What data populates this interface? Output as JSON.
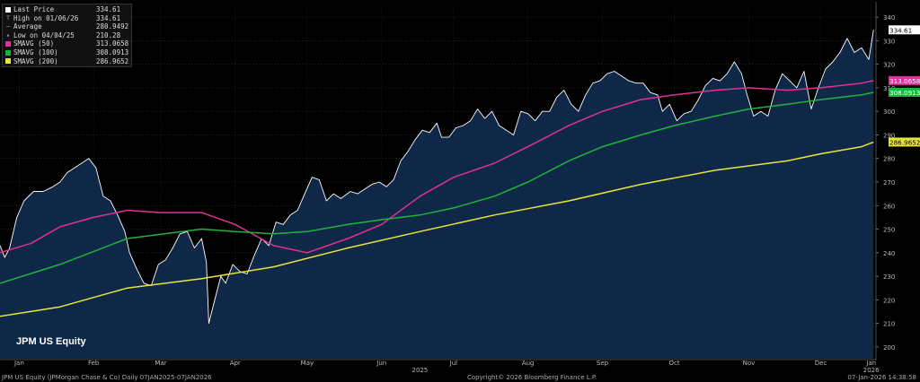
{
  "legend": [
    {
      "label": "Last Price",
      "value": "334.61",
      "color": "#ffffff",
      "glyph": "square"
    },
    {
      "label": "High on 01/06/26",
      "value": "334.61",
      "color": "#aaaaaa",
      "glyph": "T"
    },
    {
      "label": "Average",
      "value": "280.9492",
      "color": "#aaaaaa",
      "glyph": "dash"
    },
    {
      "label": "Low on 04/04/25",
      "value": "210.28",
      "color": "#aaaaaa",
      "glyph": "tri"
    },
    {
      "label": "SMAVG (50)",
      "value": "313.0658",
      "color": "#e0309a",
      "glyph": "square"
    },
    {
      "label": "SMAVG (100)",
      "value": "308.0913",
      "color": "#1eb43c",
      "glyph": "square"
    },
    {
      "label": "SMAVG (200)",
      "value": "286.9652",
      "color": "#e8e43a",
      "glyph": "square"
    }
  ],
  "ticker": "JPM US Equity",
  "footer": {
    "left": "JPM US Equity (JPMorgan Chase & Co)  Daily 07JAN2025-07JAN2026",
    "center": "Copyright© 2026 Bloomberg Finance L.P.",
    "right": "07-Jan-2026 14:38:58"
  },
  "chart_data": {
    "type": "line",
    "title": "",
    "ylim": [
      195,
      345
    ],
    "y_ticks": [
      200,
      210,
      220,
      230,
      240,
      250,
      260,
      270,
      280,
      290,
      300,
      310,
      320,
      330,
      340
    ],
    "x_range": [
      "2025-01-07",
      "2026-01-07"
    ],
    "x_ticks": [
      {
        "label": "Jan",
        "date": "2025-01-15"
      },
      {
        "label": "Feb",
        "date": "2025-02-15"
      },
      {
        "label": "Mar",
        "date": "2025-03-15"
      },
      {
        "label": "Apr",
        "date": "2025-04-15"
      },
      {
        "label": "May",
        "date": "2025-05-15"
      },
      {
        "label": "Jun",
        "date": "2025-06-15"
      },
      {
        "label": "Jul",
        "date": "2025-07-15"
      },
      {
        "label": "Aug",
        "date": "2025-08-15"
      },
      {
        "label": "Sep",
        "date": "2025-09-15"
      },
      {
        "label": "Oct",
        "date": "2025-10-15"
      },
      {
        "label": "Nov",
        "date": "2025-11-15"
      },
      {
        "label": "Dec",
        "date": "2025-12-15"
      },
      {
        "label": "Jan",
        "date": "2026-01-05"
      }
    ],
    "year_labels": [
      {
        "label": "2025",
        "date": "2025-07-01"
      },
      {
        "label": "2026",
        "date": "2026-01-05"
      }
    ],
    "last_value_labels": [
      {
        "value": "334.61",
        "y": 334.61,
        "bg": "#ffffff",
        "fg": "#000000"
      },
      {
        "value": "313.0658",
        "y": 313.07,
        "bg": "#e0309a",
        "fg": "#ffffff"
      },
      {
        "value": "308.0913",
        "y": 308.09,
        "bg": "#1eb43c",
        "fg": "#ffffff"
      },
      {
        "value": "286.9652",
        "y": 286.97,
        "bg": "#e8e43a",
        "fg": "#000000"
      }
    ],
    "series": [
      {
        "name": "Last Price",
        "color": "#ffffff",
        "fill": "#0f2847",
        "points": [
          [
            "2025-01-07",
            243
          ],
          [
            "2025-01-09",
            238
          ],
          [
            "2025-01-11",
            242
          ],
          [
            "2025-01-14",
            255
          ],
          [
            "2025-01-17",
            262
          ],
          [
            "2025-01-21",
            266
          ],
          [
            "2025-01-25",
            266
          ],
          [
            "2025-01-29",
            268
          ],
          [
            "2025-02-01",
            270
          ],
          [
            "2025-02-04",
            274
          ],
          [
            "2025-02-07",
            276
          ],
          [
            "2025-02-10",
            278
          ],
          [
            "2025-02-13",
            280
          ],
          [
            "2025-02-16",
            276
          ],
          [
            "2025-02-19",
            264
          ],
          [
            "2025-02-22",
            262
          ],
          [
            "2025-02-25",
            256
          ],
          [
            "2025-02-28",
            249
          ],
          [
            "2025-03-02",
            240
          ],
          [
            "2025-03-05",
            233
          ],
          [
            "2025-03-08",
            227
          ],
          [
            "2025-03-11",
            226
          ],
          [
            "2025-03-14",
            235
          ],
          [
            "2025-03-17",
            237
          ],
          [
            "2025-03-20",
            242
          ],
          [
            "2025-03-23",
            248
          ],
          [
            "2025-03-26",
            249
          ],
          [
            "2025-03-29",
            242
          ],
          [
            "2025-04-01",
            246
          ],
          [
            "2025-04-03",
            236
          ],
          [
            "2025-04-04",
            210
          ],
          [
            "2025-04-06",
            218
          ],
          [
            "2025-04-09",
            230
          ],
          [
            "2025-04-11",
            227
          ],
          [
            "2025-04-14",
            235
          ],
          [
            "2025-04-17",
            232
          ],
          [
            "2025-04-20",
            231
          ],
          [
            "2025-04-23",
            239
          ],
          [
            "2025-04-26",
            246
          ],
          [
            "2025-04-29",
            243
          ],
          [
            "2025-05-02",
            253
          ],
          [
            "2025-05-05",
            252
          ],
          [
            "2025-05-08",
            256
          ],
          [
            "2025-05-11",
            258
          ],
          [
            "2025-05-14",
            265
          ],
          [
            "2025-05-17",
            272
          ],
          [
            "2025-05-20",
            271
          ],
          [
            "2025-05-23",
            262
          ],
          [
            "2025-05-26",
            265
          ],
          [
            "2025-05-29",
            263
          ],
          [
            "2025-06-02",
            266
          ],
          [
            "2025-06-05",
            265
          ],
          [
            "2025-06-08",
            267
          ],
          [
            "2025-06-11",
            269
          ],
          [
            "2025-06-14",
            270
          ],
          [
            "2025-06-17",
            268
          ],
          [
            "2025-06-20",
            271
          ],
          [
            "2025-06-23",
            279
          ],
          [
            "2025-06-26",
            283
          ],
          [
            "2025-06-29",
            288
          ],
          [
            "2025-07-02",
            292
          ],
          [
            "2025-07-05",
            291
          ],
          [
            "2025-07-08",
            295
          ],
          [
            "2025-07-10",
            289
          ],
          [
            "2025-07-13",
            289
          ],
          [
            "2025-07-16",
            293
          ],
          [
            "2025-07-19",
            294
          ],
          [
            "2025-07-22",
            296
          ],
          [
            "2025-07-25",
            301
          ],
          [
            "2025-07-28",
            297
          ],
          [
            "2025-07-31",
            300
          ],
          [
            "2025-08-03",
            294
          ],
          [
            "2025-08-06",
            292
          ],
          [
            "2025-08-09",
            290
          ],
          [
            "2025-08-12",
            300
          ],
          [
            "2025-08-15",
            299
          ],
          [
            "2025-08-18",
            296
          ],
          [
            "2025-08-21",
            300
          ],
          [
            "2025-08-24",
            300
          ],
          [
            "2025-08-27",
            306
          ],
          [
            "2025-08-30",
            309
          ],
          [
            "2025-09-02",
            303
          ],
          [
            "2025-09-05",
            300
          ],
          [
            "2025-09-08",
            307
          ],
          [
            "2025-09-11",
            312
          ],
          [
            "2025-09-14",
            313
          ],
          [
            "2025-09-17",
            316
          ],
          [
            "2025-09-20",
            317
          ],
          [
            "2025-09-23",
            315
          ],
          [
            "2025-09-26",
            313
          ],
          [
            "2025-09-29",
            312
          ],
          [
            "2025-10-02",
            312
          ],
          [
            "2025-10-05",
            308
          ],
          [
            "2025-10-08",
            307
          ],
          [
            "2025-10-10",
            300
          ],
          [
            "2025-10-13",
            303
          ],
          [
            "2025-10-16",
            296
          ],
          [
            "2025-10-19",
            299
          ],
          [
            "2025-10-22",
            300
          ],
          [
            "2025-10-25",
            305
          ],
          [
            "2025-10-28",
            311
          ],
          [
            "2025-10-31",
            314
          ],
          [
            "2025-11-03",
            313
          ],
          [
            "2025-11-06",
            316
          ],
          [
            "2025-11-09",
            321
          ],
          [
            "2025-11-12",
            316
          ],
          [
            "2025-11-14",
            308
          ],
          [
            "2025-11-17",
            298
          ],
          [
            "2025-11-20",
            300
          ],
          [
            "2025-11-23",
            298
          ],
          [
            "2025-11-26",
            309
          ],
          [
            "2025-11-29",
            316
          ],
          [
            "2025-12-02",
            313
          ],
          [
            "2025-12-05",
            310
          ],
          [
            "2025-12-08",
            317
          ],
          [
            "2025-12-11",
            301
          ],
          [
            "2025-12-14",
            310
          ],
          [
            "2025-12-17",
            318
          ],
          [
            "2025-12-20",
            321
          ],
          [
            "2025-12-23",
            325
          ],
          [
            "2025-12-26",
            331
          ],
          [
            "2025-12-29",
            325
          ],
          [
            "2026-01-01",
            327
          ],
          [
            "2026-01-04",
            322
          ],
          [
            "2026-01-06",
            334.61
          ]
        ]
      },
      {
        "name": "SMAVG (50)",
        "color": "#e0309a",
        "points": [
          [
            "2025-01-07",
            240
          ],
          [
            "2025-01-20",
            244
          ],
          [
            "2025-02-01",
            251
          ],
          [
            "2025-02-15",
            255
          ],
          [
            "2025-03-01",
            258
          ],
          [
            "2025-03-15",
            257
          ],
          [
            "2025-04-01",
            257
          ],
          [
            "2025-04-15",
            252
          ],
          [
            "2025-05-01",
            243
          ],
          [
            "2025-05-15",
            240
          ],
          [
            "2025-06-01",
            246
          ],
          [
            "2025-06-15",
            252
          ],
          [
            "2025-07-01",
            264
          ],
          [
            "2025-07-15",
            272
          ],
          [
            "2025-08-01",
            278
          ],
          [
            "2025-08-15",
            285
          ],
          [
            "2025-09-01",
            294
          ],
          [
            "2025-09-15",
            300
          ],
          [
            "2025-10-01",
            305
          ],
          [
            "2025-10-15",
            307
          ],
          [
            "2025-11-01",
            309
          ],
          [
            "2025-11-15",
            310
          ],
          [
            "2025-12-01",
            309
          ],
          [
            "2025-12-15",
            310
          ],
          [
            "2026-01-01",
            312
          ],
          [
            "2026-01-06",
            313.07
          ]
        ]
      },
      {
        "name": "SMAVG (100)",
        "color": "#1eb43c",
        "points": [
          [
            "2025-01-07",
            227
          ],
          [
            "2025-02-01",
            235
          ],
          [
            "2025-03-01",
            246
          ],
          [
            "2025-04-01",
            250
          ],
          [
            "2025-04-15",
            249
          ],
          [
            "2025-05-01",
            248
          ],
          [
            "2025-05-15",
            249
          ],
          [
            "2025-06-01",
            252
          ],
          [
            "2025-06-15",
            254
          ],
          [
            "2025-07-01",
            256
          ],
          [
            "2025-07-15",
            259
          ],
          [
            "2025-08-01",
            264
          ],
          [
            "2025-08-15",
            270
          ],
          [
            "2025-09-01",
            279
          ],
          [
            "2025-09-15",
            285
          ],
          [
            "2025-10-01",
            290
          ],
          [
            "2025-10-15",
            294
          ],
          [
            "2025-11-01",
            298
          ],
          [
            "2025-11-15",
            301
          ],
          [
            "2025-12-01",
            303
          ],
          [
            "2025-12-15",
            305
          ],
          [
            "2026-01-01",
            307
          ],
          [
            "2026-01-06",
            308.09
          ]
        ]
      },
      {
        "name": "SMAVG (200)",
        "color": "#e8e43a",
        "points": [
          [
            "2025-01-07",
            213
          ],
          [
            "2025-02-01",
            217
          ],
          [
            "2025-03-01",
            225
          ],
          [
            "2025-04-01",
            229
          ],
          [
            "2025-05-01",
            234
          ],
          [
            "2025-06-01",
            242
          ],
          [
            "2025-07-01",
            249
          ],
          [
            "2025-08-01",
            256
          ],
          [
            "2025-09-01",
            262
          ],
          [
            "2025-10-01",
            269
          ],
          [
            "2025-11-01",
            275
          ],
          [
            "2025-12-01",
            279
          ],
          [
            "2025-12-15",
            282
          ],
          [
            "2026-01-01",
            285
          ],
          [
            "2026-01-06",
            286.97
          ]
        ]
      }
    ]
  }
}
